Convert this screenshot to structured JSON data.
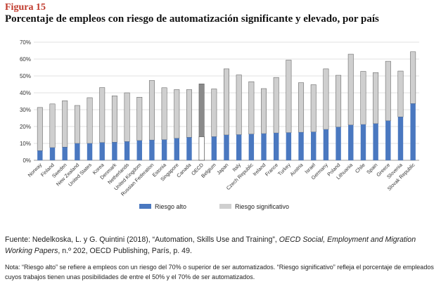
{
  "figure": {
    "label": "Figura 15",
    "title": "Porcentaje de empleos con riesgo de automatización significante y elevado, por país"
  },
  "chart_data": {
    "type": "bar",
    "stacked": true,
    "ylim": [
      0,
      70
    ],
    "yticks": [
      "0%",
      "10%",
      "20%",
      "30%",
      "40%",
      "50%",
      "60%",
      "70%"
    ],
    "grid": true,
    "legend_position": "bottom",
    "categories": [
      "Norway",
      "Finland",
      "Sweden",
      "New Zealand",
      "United States",
      "Korea",
      "Denmark",
      "Netherlands",
      "United Kingdom",
      "Russian Federation",
      "Estonia",
      "Singapore",
      "Canada",
      "OECD",
      "Belgium",
      "Japan",
      "Italy",
      "Czech Republic",
      "Ireland",
      "France",
      "Turkey",
      "Austria",
      "Israel",
      "Germany",
      "Poland",
      "Lithuania",
      "Chile",
      "Spain",
      "Greece",
      "Slovenia",
      "Slovak Republic"
    ],
    "highlight_category": "OECD",
    "series": [
      {
        "name": "Riesgo alto",
        "color": "#4a78c0",
        "highlight_color": "#ffffff",
        "values": [
          5.7,
          7.5,
          7.8,
          10.0,
          10.0,
          10.5,
          10.7,
          11.1,
          11.7,
          12.0,
          12.2,
          13.0,
          13.6,
          14.0,
          14.0,
          15.0,
          15.2,
          15.5,
          15.8,
          16.2,
          16.4,
          16.6,
          16.8,
          18.3,
          19.7,
          20.9,
          21.2,
          21.7,
          23.4,
          25.7,
          33.6
        ]
      },
      {
        "name": "Riesgo significativo",
        "color": "#cfcfcf",
        "highlight_color": "#8a8a8a",
        "values": [
          25.6,
          25.9,
          27.5,
          22.5,
          27.1,
          32.6,
          27.5,
          28.9,
          25.7,
          35.3,
          30.8,
          28.9,
          28.3,
          31.3,
          28.3,
          39.2,
          35.4,
          31.1,
          26.7,
          32.9,
          43.0,
          29.4,
          28.0,
          35.9,
          30.7,
          42.0,
          31.5,
          30.3,
          35.3,
          27.2,
          30.7
        ]
      }
    ]
  },
  "source": {
    "prefix": "Fuente: Nedelkoska, L. y G. Quintini (2018), “Automation, Skills Use and Training”, ",
    "italic": "OECD Social, Employment and Migration Working Papers",
    "suffix": ", n.º 202, OECD Publishing, París, p. 49."
  },
  "note": "Nota: “Riesgo alto” se refiere a empleos con un riesgo del 70% o superior de ser automatizados. “Riesgo significativo” refleja el porcentaje de empleados cuyos trabajos tienen unas posibilidades de entre el 50% y el 70% de ser automatizados."
}
